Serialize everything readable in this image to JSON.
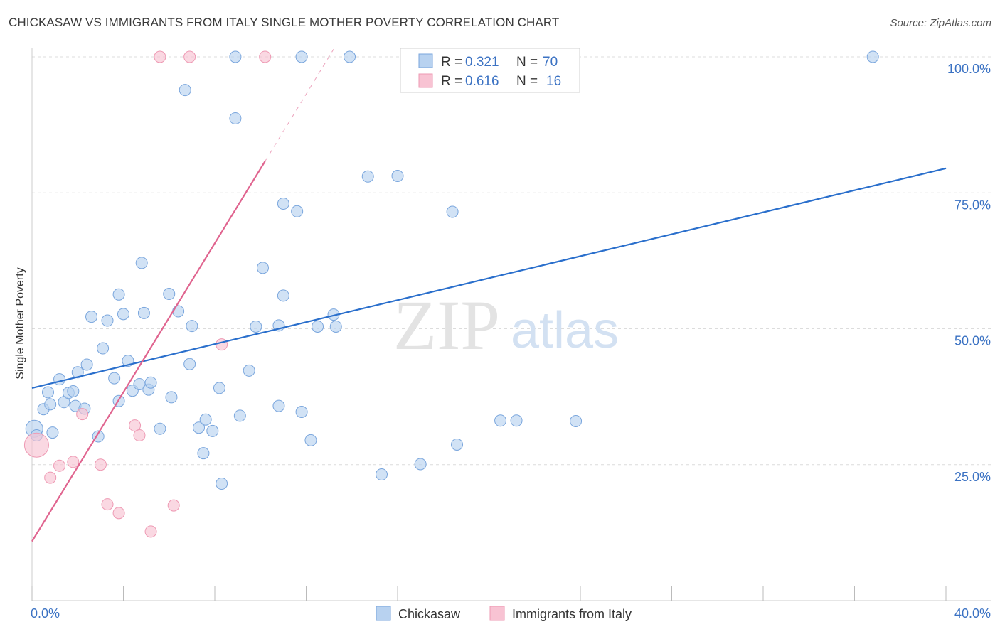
{
  "title": "CHICKASAW VS IMMIGRANTS FROM ITALY SINGLE MOTHER POVERTY CORRELATION CHART",
  "source": "Source: ZipAtlas.com",
  "colors": {
    "blue_fill": "#b8d2f0",
    "blue_stroke": "#7aa6dd",
    "blue_line": "#2a6fcc",
    "pink_fill": "#f8c3d3",
    "pink_stroke": "#ee99b3",
    "pink_line": "#e0648f",
    "grid": "#dcdcdc",
    "tick_text": "#3b72c3"
  },
  "legend": {
    "r_label": "R =",
    "n_label": "N =",
    "rows": [
      {
        "r": "0.321",
        "n": "70"
      },
      {
        "r": "0.616",
        "n": "16"
      }
    ]
  },
  "watermark": {
    "zip": "ZIP",
    "atlas": "atlas"
  },
  "chart_data": {
    "type": "scatter",
    "title": "CHICKASAW VS IMMIGRANTS FROM ITALY SINGLE MOTHER POVERTY CORRELATION CHART",
    "xlabel": "",
    "ylabel": "Single Mother Poverty",
    "xlim": [
      0,
      40
    ],
    "ylim": [
      0,
      100
    ],
    "x_tick_labels": {
      "min": "0.0%",
      "max": "40.0%"
    },
    "y_ticks": [
      {
        "value": 25,
        "label": "25.0%"
      },
      {
        "value": 50,
        "label": "50.0%"
      },
      {
        "value": 75,
        "label": "75.0%"
      },
      {
        "value": 100,
        "label": "100.0%"
      }
    ],
    "grid": true,
    "legend_position": "top-center",
    "series": [
      {
        "name": "Chickasaw",
        "color": "blue",
        "points": [
          [
            0.1,
            31.6
          ],
          [
            0.2,
            30.4
          ],
          [
            0.5,
            35.2
          ],
          [
            0.7,
            38.3
          ],
          [
            0.8,
            36.1
          ],
          [
            0.9,
            30.9
          ],
          [
            1.2,
            40.7
          ],
          [
            1.4,
            36.5
          ],
          [
            1.6,
            38.2
          ],
          [
            1.8,
            38.5
          ],
          [
            1.9,
            35.8
          ],
          [
            2.0,
            42.0
          ],
          [
            2.3,
            35.3
          ],
          [
            2.4,
            43.4
          ],
          [
            2.6,
            52.2
          ],
          [
            2.9,
            30.2
          ],
          [
            3.1,
            46.4
          ],
          [
            3.3,
            51.5
          ],
          [
            3.6,
            40.9
          ],
          [
            3.8,
            56.3
          ],
          [
            3.8,
            36.7
          ],
          [
            4.0,
            52.7
          ],
          [
            4.2,
            44.1
          ],
          [
            4.4,
            38.6
          ],
          [
            4.7,
            39.8
          ],
          [
            4.8,
            62.1
          ],
          [
            4.9,
            52.9
          ],
          [
            5.1,
            38.8
          ],
          [
            5.2,
            40.1
          ],
          [
            5.6,
            31.6
          ],
          [
            6.0,
            56.4
          ],
          [
            6.1,
            37.4
          ],
          [
            6.4,
            53.2
          ],
          [
            6.7,
            93.9
          ],
          [
            6.9,
            43.5
          ],
          [
            7.0,
            50.5
          ],
          [
            7.3,
            31.8
          ],
          [
            7.5,
            27.1
          ],
          [
            7.6,
            33.3
          ],
          [
            7.9,
            31.2
          ],
          [
            8.2,
            39.1
          ],
          [
            8.3,
            21.5
          ],
          [
            8.9,
            100.0
          ],
          [
            8.9,
            88.7
          ],
          [
            9.1,
            34.0
          ],
          [
            9.5,
            42.3
          ],
          [
            9.8,
            50.4
          ],
          [
            10.1,
            61.2
          ],
          [
            10.8,
            50.6
          ],
          [
            10.8,
            35.8
          ],
          [
            11.0,
            73.0
          ],
          [
            11.0,
            56.1
          ],
          [
            11.6,
            71.6
          ],
          [
            11.8,
            100.0
          ],
          [
            11.8,
            34.7
          ],
          [
            12.2,
            29.5
          ],
          [
            12.5,
            50.4
          ],
          [
            13.2,
            52.6
          ],
          [
            13.3,
            50.4
          ],
          [
            13.9,
            100.0
          ],
          [
            14.7,
            78.0
          ],
          [
            15.3,
            23.2
          ],
          [
            16.0,
            78.1
          ],
          [
            17.0,
            25.1
          ],
          [
            18.4,
            71.5
          ],
          [
            18.6,
            28.7
          ],
          [
            20.5,
            33.1
          ],
          [
            21.2,
            33.1
          ],
          [
            23.8,
            33.0
          ],
          [
            36.8,
            100.0
          ]
        ]
      },
      {
        "name": "Immigrants from Italy",
        "color": "pink",
        "points": [
          [
            0.2,
            28.6
          ],
          [
            0.8,
            22.6
          ],
          [
            1.2,
            24.8
          ],
          [
            1.8,
            25.5
          ],
          [
            2.2,
            34.3
          ],
          [
            3.0,
            25.0
          ],
          [
            3.3,
            17.7
          ],
          [
            3.8,
            16.1
          ],
          [
            4.5,
            32.2
          ],
          [
            4.7,
            30.4
          ],
          [
            5.2,
            12.7
          ],
          [
            5.6,
            100.0
          ],
          [
            6.2,
            17.5
          ],
          [
            6.9,
            100.0
          ],
          [
            8.3,
            47.1
          ],
          [
            10.2,
            100.0
          ]
        ]
      }
    ],
    "trendlines": [
      {
        "series": "Chickasaw",
        "x": [
          0,
          40
        ],
        "y": [
          39.1,
          79.5
        ],
        "style": "solid"
      },
      {
        "series": "Immigrants from Italy",
        "x": [
          0,
          10.2
        ],
        "y": [
          10.9,
          80.8
        ],
        "style": "solid"
      },
      {
        "series": "Immigrants from Italy",
        "x": [
          10.2,
          13.2
        ],
        "y": [
          80.8,
          101.4
        ],
        "style": "dashed"
      }
    ]
  }
}
